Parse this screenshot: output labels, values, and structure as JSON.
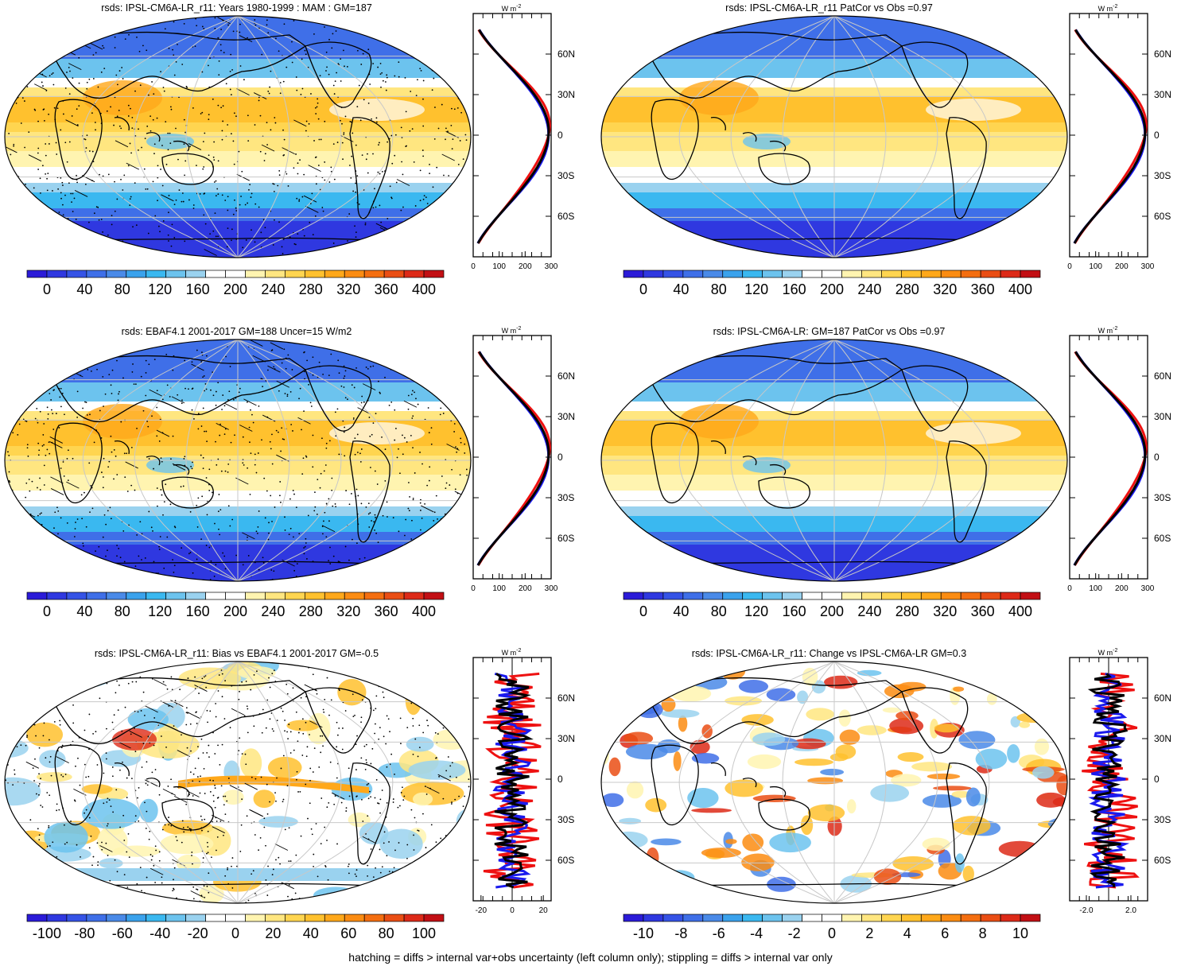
{
  "panels": [
    {
      "id": "p1",
      "title": "rsds: IPSL-CM6A-LR_r11: Years 1980-1999 : MAM : GM=187",
      "kind": "clim",
      "hatch": true,
      "profile": {
        "unit": "W m",
        "unit_exp": "-2",
        "xticks": [
          "0",
          "100",
          "200",
          "300"
        ],
        "xmin": 0,
        "xmax": 300
      }
    },
    {
      "id": "p2",
      "title": "rsds: IPSL-CM6A-LR_r11 PatCor vs Obs =0.97",
      "kind": "clim",
      "hatch": false,
      "profile": {
        "unit": "W m",
        "unit_exp": "-2",
        "xticks": [
          "0",
          "100",
          "200",
          "300"
        ],
        "xmin": 0,
        "xmax": 300
      }
    },
    {
      "id": "p3",
      "title": "rsds: EBAF4.1 2001-2017 GM=188 Uncer=15 W/m2",
      "kind": "clim",
      "hatch": true,
      "profile": {
        "unit": "W m",
        "unit_exp": "-2",
        "xticks": [
          "0",
          "100",
          "200",
          "300"
        ],
        "xmin": 0,
        "xmax": 300
      }
    },
    {
      "id": "p4",
      "title": "rsds: IPSL-CM6A-LR: GM=187 PatCor vs Obs =0.97",
      "kind": "clim",
      "hatch": false,
      "profile": {
        "unit": "W m",
        "unit_exp": "-2",
        "xticks": [
          "0",
          "100",
          "200",
          "300"
        ],
        "xmin": 0,
        "xmax": 300
      }
    },
    {
      "id": "p5",
      "title": "rsds: IPSL-CM6A-LR_r11: Bias vs EBAF4.1 2001-2017 GM=-0.5",
      "kind": "bias",
      "hatch": true,
      "profile": {
        "unit": "W m",
        "unit_exp": "-2",
        "xticks": [
          "-20",
          "0",
          "20"
        ],
        "xmin": -25,
        "xmax": 25
      }
    },
    {
      "id": "p6",
      "title": "rsds: IPSL-CM6A-LR_r11: Change vs IPSL-CM6A-LR GM=0.3",
      "kind": "change",
      "hatch": false,
      "profile": {
        "unit": "W m",
        "unit_exp": "-2",
        "xticks": [
          "-2.0",
          "2.0"
        ],
        "xmin": -3.5,
        "xmax": 3.5
      }
    }
  ],
  "latitude_labels": [
    "60N",
    "30N",
    "0",
    "30S",
    "60S"
  ],
  "colorbars": {
    "clim": {
      "labels": [
        "0",
        "40",
        "80",
        "120",
        "160",
        "200",
        "240",
        "280",
        "320",
        "360",
        "400"
      ],
      "colors": [
        "#2b1bd8",
        "#2f38e0",
        "#3553e6",
        "#3f6fe8",
        "#4a8ae8",
        "#3aa2ec",
        "#3ab8f0",
        "#6cc3ee",
        "#9ad2ef",
        "#ffffff",
        "#ffffff",
        "#fff4b0",
        "#ffe680",
        "#ffd550",
        "#ffc12e",
        "#ffa81a",
        "#fb8c12",
        "#f46e10",
        "#ea4e14",
        "#dd2a18",
        "#c20f14"
      ]
    },
    "bias": {
      "labels": [
        "-100",
        "-80",
        "-60",
        "-40",
        "-20",
        "0",
        "20",
        "40",
        "60",
        "80",
        "100"
      ],
      "colors": [
        "#2b1bd8",
        "#2f38e0",
        "#3553e6",
        "#3f6fe8",
        "#4a8ae8",
        "#3aa2ec",
        "#3ab8f0",
        "#6cc3ee",
        "#9ad2ef",
        "#ffffff",
        "#ffffff",
        "#fff4b0",
        "#ffe680",
        "#ffd550",
        "#ffc12e",
        "#ffa81a",
        "#fb8c12",
        "#f46e10",
        "#ea4e14",
        "#dd2a18",
        "#c20f14"
      ]
    },
    "change": {
      "labels": [
        "-10",
        "-8",
        "-6",
        "-4",
        "-2",
        "0",
        "2",
        "4",
        "6",
        "8",
        "10"
      ],
      "colors": [
        "#2b1bd8",
        "#2f38e0",
        "#3553e6",
        "#3f6fe8",
        "#4a8ae8",
        "#3aa2ec",
        "#3ab8f0",
        "#6cc3ee",
        "#9ad2ef",
        "#ffffff",
        "#ffffff",
        "#fff4b0",
        "#ffe680",
        "#ffd550",
        "#ffc12e",
        "#ffa81a",
        "#fb8c12",
        "#f46e10",
        "#ea4e14",
        "#dd2a18",
        "#c20f14"
      ]
    }
  },
  "line_colors": {
    "model": "#ee1111",
    "obs": "#1a1aee",
    "mean": "#000000"
  },
  "footer": "hatching = diffs > internal var+obs uncertainty (left column only); stippling = diffs > internal var only"
}
